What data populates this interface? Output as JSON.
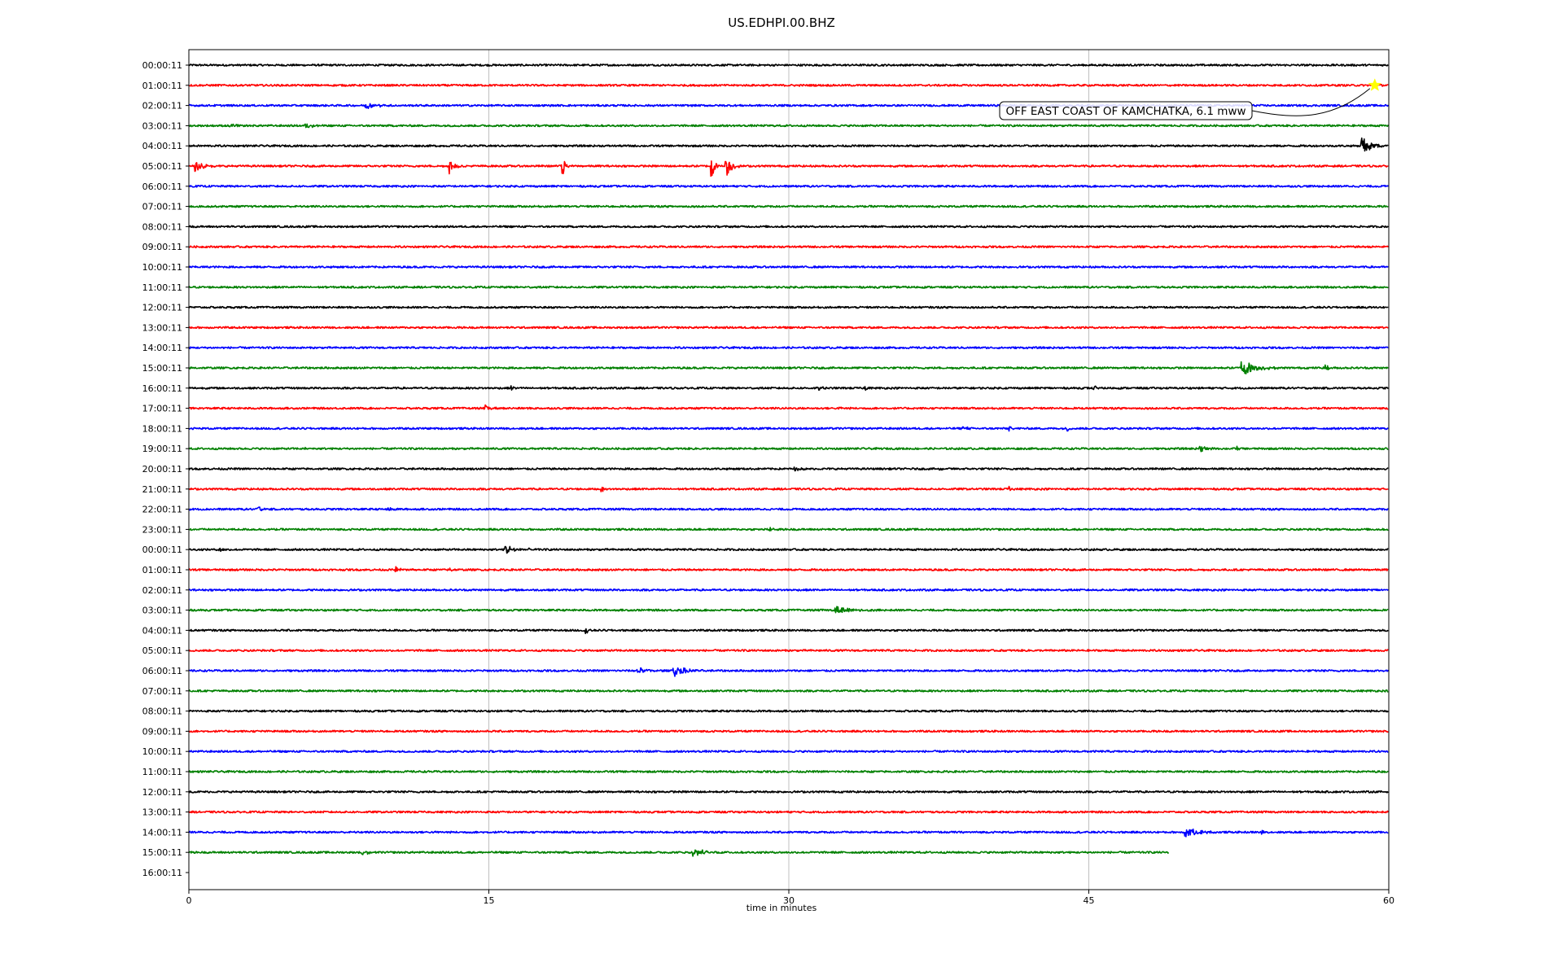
{
  "chart_data": {
    "type": "line",
    "title": "US.EDHPI.00.BHZ",
    "xlabel": "time in minutes",
    "ylabel": "",
    "xlim": [
      0,
      60
    ],
    "x_ticks": [
      0,
      15,
      30,
      45,
      60
    ],
    "grid": true,
    "row_colors": [
      "#000000",
      "#ff0000",
      "#0000ff",
      "#008000"
    ],
    "row_labels": [
      "00:00:11",
      "01:00:11",
      "02:00:11",
      "03:00:11",
      "04:00:11",
      "05:00:11",
      "06:00:11",
      "07:00:11",
      "08:00:11",
      "09:00:11",
      "10:00:11",
      "11:00:11",
      "12:00:11",
      "13:00:11",
      "14:00:11",
      "15:00:11",
      "16:00:11",
      "17:00:11",
      "18:00:11",
      "19:00:11",
      "20:00:11",
      "21:00:11",
      "22:00:11",
      "23:00:11",
      "00:00:11",
      "01:00:11",
      "02:00:11",
      "03:00:11",
      "04:00:11",
      "05:00:11",
      "06:00:11",
      "07:00:11",
      "08:00:11",
      "09:00:11",
      "10:00:11",
      "11:00:11",
      "12:00:11",
      "13:00:11",
      "14:00:11",
      "15:00:11",
      "16:00:11"
    ],
    "trace_end_minutes": [
      60,
      60,
      60,
      60,
      60,
      60,
      60,
      60,
      60,
      60,
      60,
      60,
      60,
      60,
      60,
      60,
      60,
      60,
      60,
      60,
      60,
      60,
      60,
      60,
      60,
      60,
      60,
      60,
      60,
      60,
      60,
      60,
      60,
      60,
      60,
      60,
      60,
      60,
      60,
      49,
      0
    ],
    "events": [
      {
        "row": 2,
        "minute": 8.8,
        "amp": 0.35,
        "dur": 1.5
      },
      {
        "row": 3,
        "minute": 2.0,
        "amp": 0.25,
        "dur": 0.8
      },
      {
        "row": 3,
        "minute": 5.8,
        "amp": 0.22,
        "dur": 1.2
      },
      {
        "row": 4,
        "minute": 58.6,
        "amp": 1.2,
        "dur": 1.3
      },
      {
        "row": 5,
        "minute": 0.3,
        "amp": 0.5,
        "dur": 1.2
      },
      {
        "row": 5,
        "minute": 13.0,
        "amp": 0.8,
        "dur": 0.8
      },
      {
        "row": 5,
        "minute": 18.6,
        "amp": 1.6,
        "dur": 0.5
      },
      {
        "row": 5,
        "minute": 26.1,
        "amp": 1.9,
        "dur": 0.4
      },
      {
        "row": 5,
        "minute": 26.8,
        "amp": 1.5,
        "dur": 0.8
      },
      {
        "row": 15,
        "minute": 52.6,
        "amp": 0.9,
        "dur": 2.0
      },
      {
        "row": 15,
        "minute": 56.8,
        "amp": 0.5,
        "dur": 0.4
      },
      {
        "row": 16,
        "minute": 16.1,
        "amp": 0.3,
        "dur": 0.5
      },
      {
        "row": 16,
        "minute": 31.5,
        "amp": 0.3,
        "dur": 0.6
      },
      {
        "row": 16,
        "minute": 33.8,
        "amp": 0.4,
        "dur": 0.3
      },
      {
        "row": 16,
        "minute": 45.2,
        "amp": 0.35,
        "dur": 0.4
      },
      {
        "row": 17,
        "minute": 14.8,
        "amp": 0.3,
        "dur": 0.8
      },
      {
        "row": 17,
        "minute": 32.5,
        "amp": 0.45,
        "dur": 0.3
      },
      {
        "row": 18,
        "minute": 38.7,
        "amp": 0.35,
        "dur": 0.5
      },
      {
        "row": 18,
        "minute": 41.0,
        "amp": 0.35,
        "dur": 0.3
      },
      {
        "row": 18,
        "minute": 43.9,
        "amp": 0.35,
        "dur": 0.3
      },
      {
        "row": 19,
        "minute": 5.8,
        "amp": 0.3,
        "dur": 0.5
      },
      {
        "row": 19,
        "minute": 50.5,
        "amp": 0.35,
        "dur": 1.0
      },
      {
        "row": 19,
        "minute": 52.4,
        "amp": 0.35,
        "dur": 0.3
      },
      {
        "row": 20,
        "minute": 30.2,
        "amp": 0.25,
        "dur": 0.8
      },
      {
        "row": 20,
        "minute": 37.5,
        "amp": 0.25,
        "dur": 0.6
      },
      {
        "row": 21,
        "minute": 20.6,
        "amp": 0.35,
        "dur": 0.4
      },
      {
        "row": 21,
        "minute": 41.0,
        "amp": 0.45,
        "dur": 0.3
      },
      {
        "row": 22,
        "minute": 3.4,
        "amp": 0.5,
        "dur": 0.5
      },
      {
        "row": 22,
        "minute": 9.9,
        "amp": 0.35,
        "dur": 0.6
      },
      {
        "row": 23,
        "minute": 29.0,
        "amp": 0.3,
        "dur": 0.5
      },
      {
        "row": 24,
        "minute": 1.5,
        "amp": 0.3,
        "dur": 0.4
      },
      {
        "row": 24,
        "minute": 15.8,
        "amp": 0.55,
        "dur": 1.8
      },
      {
        "row": 25,
        "minute": 10.3,
        "amp": 0.3,
        "dur": 1.0
      },
      {
        "row": 25,
        "minute": 13.0,
        "amp": 0.55,
        "dur": 0.3
      },
      {
        "row": 27,
        "minute": 32.3,
        "amp": 0.45,
        "dur": 2.4
      },
      {
        "row": 28,
        "minute": 19.8,
        "amp": 0.55,
        "dur": 0.4
      },
      {
        "row": 30,
        "minute": 22.4,
        "amp": 0.4,
        "dur": 1.5
      },
      {
        "row": 30,
        "minute": 24.2,
        "amp": 0.7,
        "dur": 1.5
      },
      {
        "row": 38,
        "minute": 49.8,
        "amp": 0.55,
        "dur": 1.8
      },
      {
        "row": 38,
        "minute": 53.6,
        "amp": 0.45,
        "dur": 0.3
      },
      {
        "row": 39,
        "minute": 8.6,
        "amp": 0.45,
        "dur": 0.8
      },
      {
        "row": 39,
        "minute": 25.2,
        "amp": 0.4,
        "dur": 1.8
      }
    ],
    "annotation": {
      "text": "OFF EAST COAST OF KAMCHATKA, 6.1 mww",
      "row": 1,
      "minute": 59.3,
      "marker_color": "#ffff00"
    }
  }
}
